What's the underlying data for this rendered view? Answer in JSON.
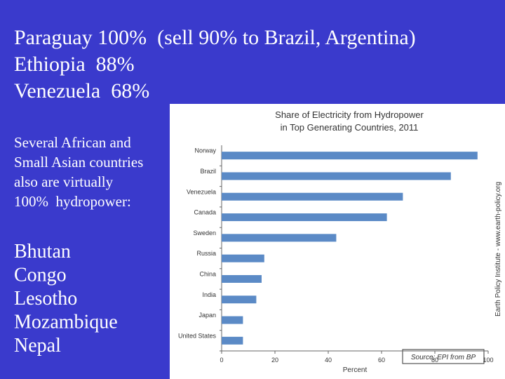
{
  "slide": {
    "headline": [
      "Paraguay 100%  (sell 90% to Brazil, Argentina)",
      "Ethiopia  88%",
      "Venezuela  68%"
    ],
    "note": [
      "Several African and",
      "Small Asian countries",
      "also are virtually",
      "100%  hydropower:"
    ],
    "countries": [
      "Bhutan",
      "Congo",
      "Lesotho",
      "Mozambique",
      "Nepal"
    ]
  },
  "chart_data": {
    "type": "hbar",
    "title": "Share of Electricity from Hydropower",
    "subtitle": "in Top Generating Countries, 2011",
    "x_label": "Percent",
    "source": "Source: EPI from BP",
    "credit": "Earth Policy Institute - www.earth-policy.org",
    "categories": [
      "Norway",
      "Brazil",
      "Venezuela",
      "Canada",
      "Sweden",
      "Russia",
      "China",
      "India",
      "Japan",
      "United States"
    ],
    "values": [
      96,
      86,
      68,
      62,
      43,
      16,
      15,
      13,
      8,
      8
    ],
    "color": "#5b8ac6",
    "xlim": [
      0,
      100
    ],
    "xticks": [
      0,
      20,
      40,
      60,
      80,
      100
    ]
  }
}
